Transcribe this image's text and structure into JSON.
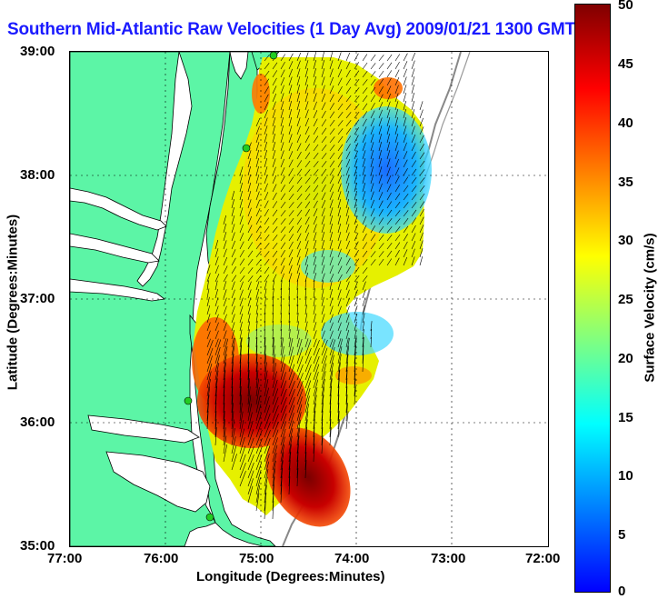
{
  "title": "Southern Mid-Atlantic Raw Velocities (1 Day Avg) 2009/01/21 1300 GMT",
  "axes": {
    "xlabel": "Longitude (Degrees:Minutes)",
    "ylabel": "Latitude (Degrees:Minutes)",
    "x_ticks": [
      "77:00",
      "76:00",
      "75:00",
      "74:00",
      "73:00",
      "72:00"
    ],
    "y_ticks": [
      "39:00",
      "38:00",
      "37:00",
      "36:00",
      "35:00"
    ],
    "xlim": [
      -77,
      -72
    ],
    "ylim": [
      35,
      39
    ]
  },
  "colorbar": {
    "label": "Surface Velocity (cm/s)",
    "ticks": [
      "0",
      "5",
      "10",
      "15",
      "20",
      "25",
      "30",
      "35",
      "40",
      "45",
      "50"
    ],
    "range": [
      0,
      50
    ],
    "colormap": [
      "#0000ff",
      "#0080ff",
      "#00ffff",
      "#80ff80",
      "#ffff00",
      "#ff8000",
      "#ff0000",
      "#800000"
    ]
  },
  "colors": {
    "land": "#5cf5a6",
    "coast": "#000000",
    "shelf_break": "#888888",
    "vectors": "#000000",
    "stations": "#22cc22",
    "title": "#1a1aff"
  },
  "legend": "none",
  "grid": true
}
